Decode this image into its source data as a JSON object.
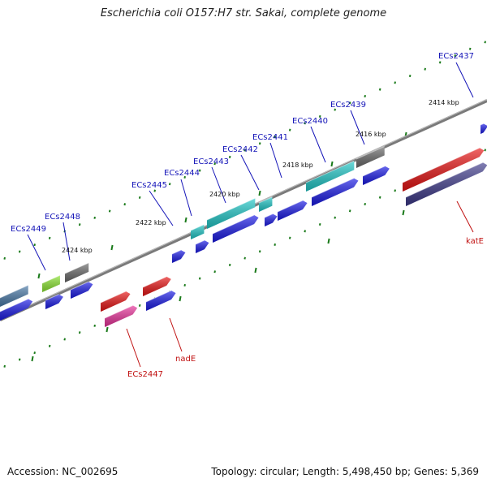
{
  "header": {
    "title": "Escherichia coli O157:H7 str. Sakai, complete genome"
  },
  "footer": {
    "accession": "Accession: NC_002695",
    "topology": "Topology: circular; Length: 5,498,450 bp; Genes: 5,369"
  },
  "colors": {
    "backbone": "#7a7a7a",
    "tick": "#1a7a1a",
    "gene_blue": "#1a1ae6",
    "gene_cyan": "#20c8c8",
    "gene_red": "#e81414",
    "gene_magenta": "#e8329a",
    "gene_gray": "#6a6a6a",
    "gene_navy": "#3e3a8a",
    "gene_steel": "#4a7aa8",
    "gene_lime": "#8ce632",
    "label_blue": "#1515b8",
    "label_red": "#c01010"
  },
  "scale_labels": [
    "2414 kbp",
    "2416 kbp",
    "2418 kbp",
    "2420 kbp",
    "2422 kbp",
    "2424 kbp"
  ],
  "gene_labels": {
    "top": [
      "ECs2437",
      "ECs2439",
      "ECs2440",
      "ECs2441",
      "ECs2442",
      "ECs2443",
      "ECs2444",
      "ECs2445",
      "ECs2448",
      "ECs2449"
    ],
    "bottom": [
      "katE",
      "nadE",
      "ECs2447"
    ]
  }
}
